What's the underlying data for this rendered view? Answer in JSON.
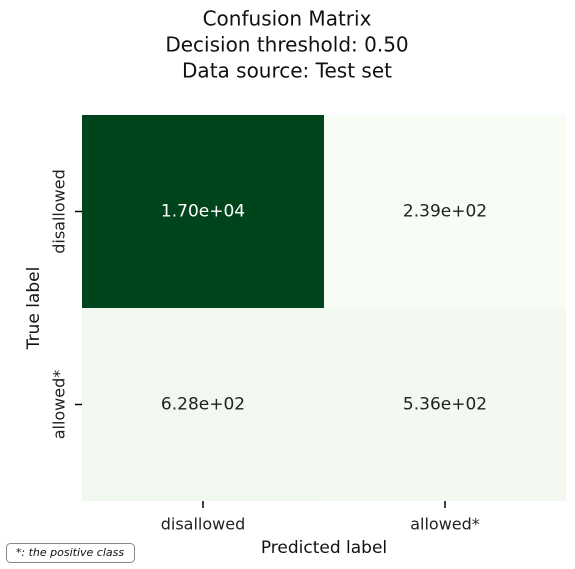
{
  "chart_data": {
    "type": "heatmap",
    "title": [
      "Confusion Matrix",
      "Decision threshold: 0.50",
      "Data source: Test set"
    ],
    "xlabel": "Predicted label",
    "ylabel": "True label",
    "categories": [
      "disallowed",
      "allowed*"
    ],
    "y_categories": [
      "disallowed",
      "allowed*"
    ],
    "values": [
      [
        17000,
        239
      ],
      [
        628,
        536
      ]
    ],
    "value_labels": [
      [
        "1.70e+04",
        "2.39e+02"
      ],
      [
        "6.28e+02",
        "5.36e+02"
      ]
    ],
    "colormap": [
      "#f7fcf5",
      "#00441b"
    ],
    "footnote": "*: the positive class"
  }
}
